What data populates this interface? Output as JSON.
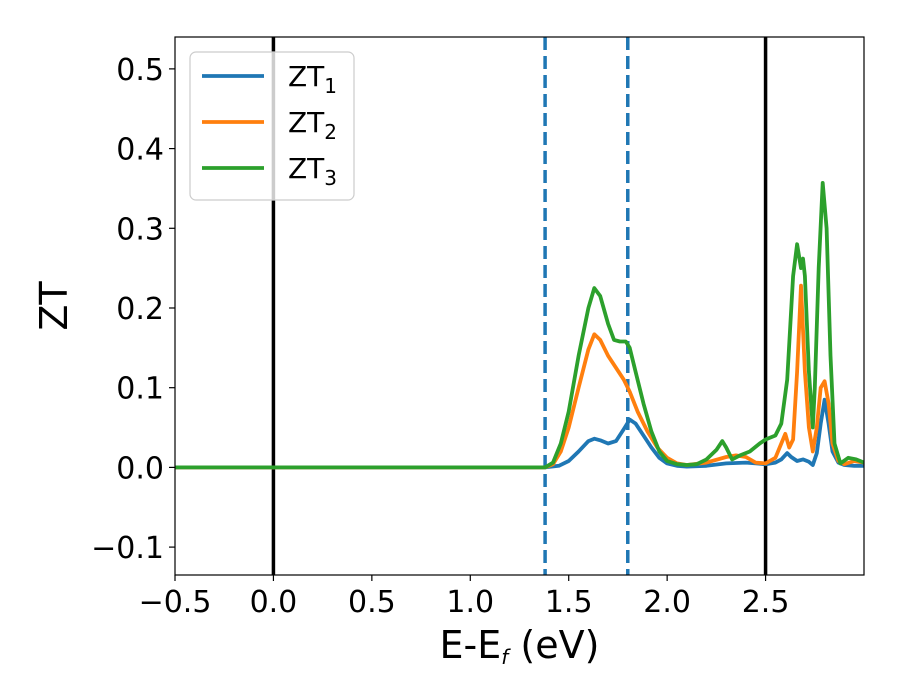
{
  "chart_data": {
    "type": "line",
    "title": "",
    "xlabel": {
      "main": "E-E",
      "sub": "f",
      "unit": " (eV)"
    },
    "ylabel": "ZT",
    "xlim": [
      -0.5,
      3.0
    ],
    "ylim": [
      -0.135,
      0.54
    ],
    "xticks": [
      -0.5,
      0.0,
      0.5,
      1.0,
      1.5,
      2.0,
      2.5
    ],
    "xtick_labels": [
      "−0.5",
      "0.0",
      "0.5",
      "1.0",
      "1.5",
      "2.0",
      "2.5"
    ],
    "yticks": [
      -0.1,
      0.0,
      0.1,
      0.2,
      0.3,
      0.4,
      0.5
    ],
    "ytick_labels": [
      "−0.1",
      "0.0",
      "0.1",
      "0.2",
      "0.3",
      "0.4",
      "0.5"
    ],
    "grid": false,
    "legend_position": "top-left",
    "vlines": [
      {
        "x": 0.0,
        "style": "solid",
        "color": "#000000"
      },
      {
        "x": 2.5,
        "style": "solid",
        "color": "#000000"
      },
      {
        "x": 1.38,
        "style": "dashed",
        "color": "#1f77b4"
      },
      {
        "x": 1.8,
        "style": "dashed",
        "color": "#1f77b4"
      }
    ],
    "series": [
      {
        "name": "ZT",
        "name_sub": "1",
        "color": "#1f77b4",
        "points": [
          [
            -0.5,
            0
          ],
          [
            1.38,
            0
          ],
          [
            1.45,
            0.002
          ],
          [
            1.5,
            0.008
          ],
          [
            1.55,
            0.02
          ],
          [
            1.6,
            0.033
          ],
          [
            1.63,
            0.036
          ],
          [
            1.66,
            0.034
          ],
          [
            1.7,
            0.03
          ],
          [
            1.74,
            0.033
          ],
          [
            1.78,
            0.048
          ],
          [
            1.81,
            0.06
          ],
          [
            1.84,
            0.055
          ],
          [
            1.88,
            0.04
          ],
          [
            1.92,
            0.025
          ],
          [
            1.96,
            0.012
          ],
          [
            2.0,
            0.005
          ],
          [
            2.05,
            0.002
          ],
          [
            2.1,
            0.001
          ],
          [
            2.2,
            0.002
          ],
          [
            2.3,
            0.005
          ],
          [
            2.4,
            0.006
          ],
          [
            2.45,
            0.005
          ],
          [
            2.5,
            0.004
          ],
          [
            2.55,
            0.006
          ],
          [
            2.58,
            0.01
          ],
          [
            2.61,
            0.018
          ],
          [
            2.63,
            0.013
          ],
          [
            2.66,
            0.008
          ],
          [
            2.69,
            0.01
          ],
          [
            2.72,
            0.007
          ],
          [
            2.74,
            0.003
          ],
          [
            2.76,
            0.018
          ],
          [
            2.78,
            0.055
          ],
          [
            2.8,
            0.085
          ],
          [
            2.82,
            0.055
          ],
          [
            2.84,
            0.02
          ],
          [
            2.87,
            0.006
          ],
          [
            2.9,
            0.003
          ],
          [
            2.95,
            0.002
          ],
          [
            3.0,
            0.002
          ]
        ]
      },
      {
        "name": "ZT",
        "name_sub": "2",
        "color": "#ff7f0e",
        "points": [
          [
            -0.5,
            0
          ],
          [
            1.38,
            0
          ],
          [
            1.42,
            0.004
          ],
          [
            1.46,
            0.02
          ],
          [
            1.5,
            0.05
          ],
          [
            1.55,
            0.1
          ],
          [
            1.6,
            0.148
          ],
          [
            1.63,
            0.167
          ],
          [
            1.66,
            0.16
          ],
          [
            1.7,
            0.14
          ],
          [
            1.74,
            0.125
          ],
          [
            1.78,
            0.11
          ],
          [
            1.81,
            0.095
          ],
          [
            1.85,
            0.07
          ],
          [
            1.9,
            0.045
          ],
          [
            1.95,
            0.025
          ],
          [
            2.0,
            0.012
          ],
          [
            2.05,
            0.005
          ],
          [
            2.1,
            0.003
          ],
          [
            2.2,
            0.006
          ],
          [
            2.3,
            0.013
          ],
          [
            2.35,
            0.015
          ],
          [
            2.4,
            0.013
          ],
          [
            2.45,
            0.006
          ],
          [
            2.5,
            0.005
          ],
          [
            2.55,
            0.012
          ],
          [
            2.58,
            0.03
          ],
          [
            2.6,
            0.042
          ],
          [
            2.62,
            0.025
          ],
          [
            2.64,
            0.035
          ],
          [
            2.66,
            0.12
          ],
          [
            2.68,
            0.228
          ],
          [
            2.7,
            0.12
          ],
          [
            2.72,
            0.05
          ],
          [
            2.74,
            0.02
          ],
          [
            2.76,
            0.05
          ],
          [
            2.78,
            0.1
          ],
          [
            2.8,
            0.108
          ],
          [
            2.82,
            0.08
          ],
          [
            2.84,
            0.03
          ],
          [
            2.87,
            0.008
          ],
          [
            2.9,
            0.004
          ],
          [
            2.95,
            0.008
          ],
          [
            3.0,
            0.006
          ]
        ]
      },
      {
        "name": "ZT",
        "name_sub": "3",
        "color": "#2ca02c",
        "points": [
          [
            -0.5,
            0
          ],
          [
            1.38,
            0
          ],
          [
            1.42,
            0.006
          ],
          [
            1.46,
            0.03
          ],
          [
            1.5,
            0.07
          ],
          [
            1.55,
            0.14
          ],
          [
            1.6,
            0.2
          ],
          [
            1.63,
            0.225
          ],
          [
            1.66,
            0.215
          ],
          [
            1.7,
            0.18
          ],
          [
            1.73,
            0.16
          ],
          [
            1.76,
            0.158
          ],
          [
            1.79,
            0.158
          ],
          [
            1.81,
            0.15
          ],
          [
            1.84,
            0.12
          ],
          [
            1.88,
            0.08
          ],
          [
            1.92,
            0.045
          ],
          [
            1.96,
            0.02
          ],
          [
            2.0,
            0.008
          ],
          [
            2.05,
            0.004
          ],
          [
            2.1,
            0.003
          ],
          [
            2.15,
            0.004
          ],
          [
            2.2,
            0.01
          ],
          [
            2.25,
            0.022
          ],
          [
            2.28,
            0.033
          ],
          [
            2.3,
            0.025
          ],
          [
            2.33,
            0.01
          ],
          [
            2.37,
            0.015
          ],
          [
            2.42,
            0.02
          ],
          [
            2.47,
            0.03
          ],
          [
            2.5,
            0.035
          ],
          [
            2.55,
            0.04
          ],
          [
            2.58,
            0.055
          ],
          [
            2.61,
            0.11
          ],
          [
            2.64,
            0.24
          ],
          [
            2.66,
            0.28
          ],
          [
            2.68,
            0.25
          ],
          [
            2.69,
            0.262
          ],
          [
            2.7,
            0.24
          ],
          [
            2.72,
            0.12
          ],
          [
            2.74,
            0.05
          ],
          [
            2.75,
            0.1
          ],
          [
            2.77,
            0.25
          ],
          [
            2.79,
            0.357
          ],
          [
            2.81,
            0.3
          ],
          [
            2.83,
            0.14
          ],
          [
            2.85,
            0.03
          ],
          [
            2.88,
            0.005
          ],
          [
            2.92,
            0.012
          ],
          [
            2.96,
            0.01
          ],
          [
            3.0,
            0.006
          ]
        ]
      }
    ]
  }
}
